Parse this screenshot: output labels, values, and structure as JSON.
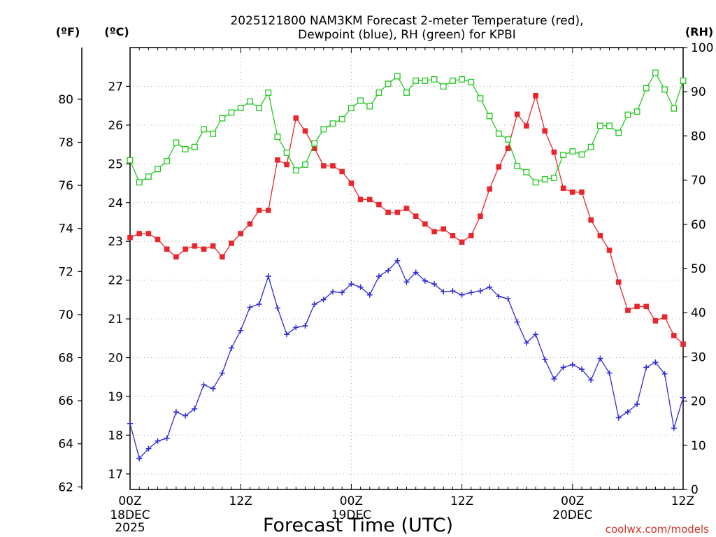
{
  "chart_data": {
    "type": "line",
    "title_line1": "2025121800 NAM3KM Forecast 2-meter Temperature (red),",
    "title_line2": "Dewpoint (blue), RH (green) for KPBI",
    "xlabel": "Forecast Time (UTC)",
    "credit": "coolwx.com/models",
    "units": {
      "fahrenheit": "(ºF)",
      "celsius": "(ºC)",
      "rh": "(RH)"
    },
    "x_ticks": [
      {
        "hour": 0,
        "label": "00Z",
        "sub": [
          "18DEC",
          "2025"
        ]
      },
      {
        "hour": 12,
        "label": "12Z",
        "sub": []
      },
      {
        "hour": 24,
        "label": "00Z",
        "sub": [
          "19DEC"
        ]
      },
      {
        "hour": 36,
        "label": "12Z",
        "sub": []
      },
      {
        "hour": 48,
        "label": "00Z",
        "sub": [
          "20DEC"
        ]
      },
      {
        "hour": 60,
        "label": "12Z",
        "sub": []
      }
    ],
    "xlim": [
      0,
      60
    ],
    "celsius_axis": {
      "ylim": [
        16.6,
        28.0
      ],
      "ticks": [
        17,
        18,
        19,
        20,
        21,
        22,
        23,
        24,
        25,
        26,
        27
      ]
    },
    "fahrenheit_ticks": [
      62,
      64,
      66,
      68,
      70,
      72,
      74,
      76,
      78,
      80
    ],
    "rh_axis": {
      "ylim": [
        0,
        100
      ],
      "ticks": [
        0,
        10,
        20,
        30,
        40,
        50,
        60,
        70,
        80,
        90,
        100
      ]
    },
    "hours": [
      0,
      1,
      2,
      3,
      4,
      5,
      6,
      7,
      8,
      9,
      10,
      11,
      12,
      13,
      14,
      15,
      16,
      17,
      18,
      19,
      20,
      21,
      22,
      23,
      24,
      25,
      26,
      27,
      28,
      29,
      30,
      31,
      32,
      33,
      34,
      35,
      36,
      37,
      38,
      39,
      40,
      41,
      42,
      43,
      44,
      45,
      46,
      47,
      48,
      49,
      50,
      51,
      52,
      53,
      54,
      55,
      56,
      57,
      58,
      59,
      60
    ],
    "series": [
      {
        "name": "2-meter Temperature",
        "color": "#e8262c",
        "axis": "celsius",
        "marker": "filled-square",
        "values": [
          23.1,
          23.2,
          23.2,
          23.05,
          22.8,
          22.6,
          22.8,
          22.88,
          22.8,
          22.88,
          22.6,
          22.95,
          23.2,
          23.45,
          23.8,
          23.8,
          25.1,
          24.98,
          26.18,
          25.85,
          25.4,
          24.95,
          24.95,
          24.8,
          24.5,
          24.08,
          24.08,
          23.95,
          23.75,
          23.75,
          23.85,
          23.65,
          23.45,
          23.25,
          23.32,
          23.15,
          22.98,
          23.15,
          23.65,
          24.35,
          24.92,
          25.4,
          26.28,
          25.98,
          26.76,
          25.85,
          25.3,
          24.37,
          24.27,
          24.27,
          23.55,
          23.15,
          22.77,
          21.95,
          21.22,
          21.32,
          21.32,
          20.95,
          21.05,
          20.57,
          20.35
        ]
      },
      {
        "name": "2-meter Dewpoint",
        "color": "#2d2bd8",
        "axis": "celsius",
        "marker": "plus",
        "values": [
          18.3,
          17.4,
          17.65,
          17.85,
          17.92,
          18.6,
          18.5,
          18.68,
          19.3,
          19.2,
          19.6,
          20.25,
          20.7,
          21.3,
          21.38,
          22.1,
          21.28,
          20.6,
          20.78,
          20.82,
          21.38,
          21.5,
          21.7,
          21.68,
          21.9,
          21.82,
          21.62,
          22.1,
          22.25,
          22.5,
          21.95,
          22.2,
          21.98,
          21.9,
          21.7,
          21.72,
          21.62,
          21.68,
          21.72,
          21.82,
          21.58,
          21.52,
          20.92,
          20.38,
          20.6,
          19.95,
          19.45,
          19.75,
          19.82,
          19.7,
          19.42,
          19.98,
          19.6,
          18.45,
          18.6,
          18.8,
          19.75,
          19.88,
          19.58,
          18.18,
          18.97
        ]
      },
      {
        "name": "Relative Humidity",
        "color": "#22c81e",
        "axis": "rh",
        "marker": "open-square",
        "values": [
          74.5,
          69.5,
          70.8,
          72.5,
          74.3,
          78.5,
          77,
          77.5,
          81.5,
          80.5,
          84,
          85.3,
          86.3,
          87.8,
          86.3,
          89.8,
          79.8,
          76.2,
          72.2,
          73.5,
          78.3,
          81.5,
          82.8,
          83.8,
          86.3,
          88,
          86.7,
          89.8,
          91.8,
          93.5,
          89.8,
          92.5,
          92.5,
          92.8,
          91.2,
          92.5,
          92.8,
          92.2,
          88.5,
          84.5,
          80.5,
          79.2,
          73.2,
          71.8,
          69.5,
          70.2,
          70.5,
          75.7,
          76.5,
          75.8,
          77.5,
          82.3,
          82.3,
          80.7,
          84.8,
          85.5,
          90.8,
          94.3,
          90.5,
          86.2,
          92.5
        ]
      }
    ]
  }
}
